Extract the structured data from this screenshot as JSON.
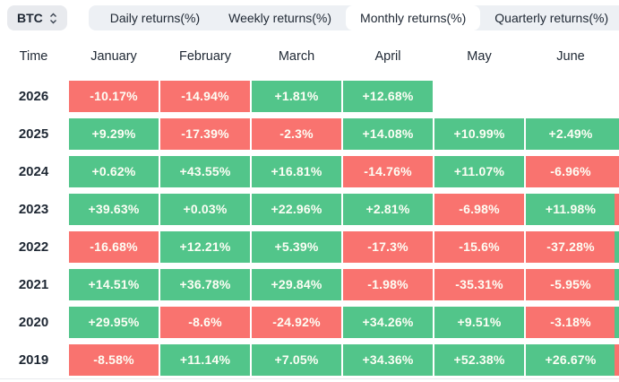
{
  "symbol_selector": {
    "label": "BTC"
  },
  "tabs": [
    {
      "label": "Daily returns(%)",
      "key": "daily",
      "active": false
    },
    {
      "label": "Weekly returns(%)",
      "key": "weekly",
      "active": false
    },
    {
      "label": "Monthly returns(%)",
      "key": "monthly",
      "active": true
    },
    {
      "label": "Quarterly returns(%)",
      "key": "quarterly",
      "active": false
    }
  ],
  "colors": {
    "positive": "#52c58a",
    "negative": "#f9736f",
    "tabbar_bg": "#edf0f4",
    "active_tab_bg": "#ffffff",
    "symbol_btn_bg": "#e8eaee",
    "dark_text": "#1e2733",
    "cell_text": "#fdfef5"
  },
  "table": {
    "time_header": "Time",
    "months": [
      "January",
      "February",
      "March",
      "April",
      "May",
      "June"
    ],
    "rows": [
      {
        "year": "2026",
        "cells": [
          "-10.17%",
          "-14.94%",
          "+1.81%",
          "+12.68%",
          null,
          null
        ],
        "overflow": null
      },
      {
        "year": "2025",
        "cells": [
          "+9.29%",
          "-17.39%",
          "-2.3%",
          "+14.08%",
          "+10.99%",
          "+2.49%"
        ],
        "overflow": "positive"
      },
      {
        "year": "2024",
        "cells": [
          "+0.62%",
          "+43.55%",
          "+16.81%",
          "-14.76%",
          "+11.07%",
          "-6.96%"
        ],
        "overflow": "negative"
      },
      {
        "year": "2023",
        "cells": [
          "+39.63%",
          "+0.03%",
          "+22.96%",
          "+2.81%",
          "-6.98%",
          "+11.98%"
        ],
        "overflow": "negative"
      },
      {
        "year": "2022",
        "cells": [
          "-16.68%",
          "+12.21%",
          "+5.39%",
          "-17.3%",
          "-15.6%",
          "-37.28%"
        ],
        "overflow": "positive"
      },
      {
        "year": "2021",
        "cells": [
          "+14.51%",
          "+36.78%",
          "+29.84%",
          "-1.98%",
          "-35.31%",
          "-5.95%"
        ],
        "overflow": "positive"
      },
      {
        "year": "2020",
        "cells": [
          "+29.95%",
          "-8.6%",
          "-24.92%",
          "+34.26%",
          "+9.51%",
          "-3.18%"
        ],
        "overflow": "positive"
      },
      {
        "year": "2019",
        "cells": [
          "-8.58%",
          "+11.14%",
          "+7.05%",
          "+34.36%",
          "+52.38%",
          "+26.67%"
        ],
        "overflow": "negative"
      }
    ]
  }
}
